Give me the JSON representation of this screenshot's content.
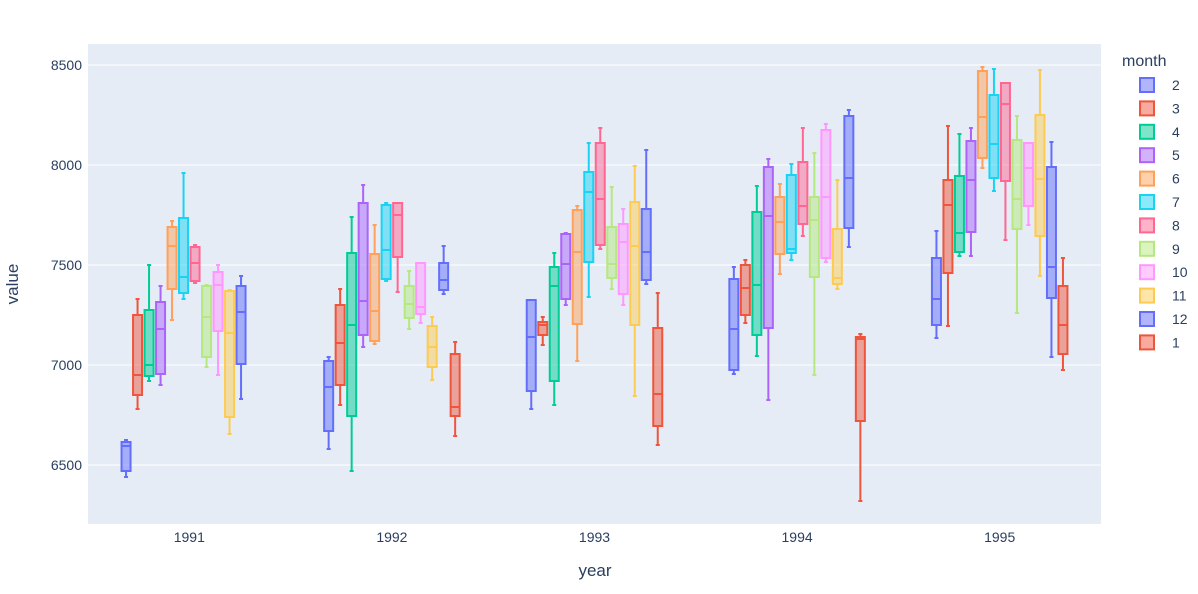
{
  "chart_data": {
    "type": "box",
    "xlabel": "year",
    "ylabel": "value",
    "legend_title": "month",
    "legend_position": "right",
    "categories": [
      "1991",
      "1992",
      "1993",
      "1994",
      "1995"
    ],
    "ylim": [
      6200,
      8700
    ],
    "yticks": [
      6500,
      7000,
      7500,
      8000,
      8500
    ],
    "grid": true,
    "series": [
      {
        "name": "2",
        "color": "#636efa",
        "boxes": [
          {
            "year": "1991",
            "min": 6440,
            "q1": 6470,
            "median": 6595,
            "q3": 6615,
            "max": 6625
          },
          {
            "year": "1992",
            "min": 6580,
            "q1": 6670,
            "median": 6890,
            "q3": 7020,
            "max": 7040
          },
          {
            "year": "1993",
            "min": 6780,
            "q1": 6870,
            "median": 7140,
            "q3": 7325,
            "max": 7325
          },
          {
            "year": "1994",
            "min": 6955,
            "q1": 6975,
            "median": 7180,
            "q3": 7430,
            "max": 7490
          },
          {
            "year": "1995",
            "min": 7135,
            "q1": 7200,
            "median": 7330,
            "q3": 7535,
            "max": 7670
          }
        ]
      },
      {
        "name": "3",
        "color": "#EF553B",
        "boxes": [
          {
            "year": "1991",
            "min": 6780,
            "q1": 6850,
            "median": 6950,
            "q3": 7250,
            "max": 7330
          },
          {
            "year": "1992",
            "min": 6800,
            "q1": 6900,
            "median": 7110,
            "q3": 7300,
            "max": 7380
          },
          {
            "year": "1993",
            "min": 7100,
            "q1": 7150,
            "median": 7200,
            "q3": 7215,
            "max": 7240
          },
          {
            "year": "1994",
            "min": 7210,
            "q1": 7250,
            "median": 7385,
            "q3": 7500,
            "max": 7525
          },
          {
            "year": "1995",
            "min": 7195,
            "q1": 7460,
            "median": 7800,
            "q3": 7925,
            "max": 8195
          }
        ]
      },
      {
        "name": "4",
        "color": "#00cc96",
        "boxes": [
          {
            "year": "1991",
            "min": 6920,
            "q1": 6945,
            "median": 7000,
            "q3": 7275,
            "max": 7500
          },
          {
            "year": "1992",
            "min": 6470,
            "q1": 6745,
            "median": 7200,
            "q3": 7560,
            "max": 7740
          },
          {
            "year": "1993",
            "min": 6800,
            "q1": 6920,
            "median": 7395,
            "q3": 7490,
            "max": 7560
          },
          {
            "year": "1994",
            "min": 7045,
            "q1": 7150,
            "median": 7400,
            "q3": 7765,
            "max": 7895
          },
          {
            "year": "1995",
            "min": 7545,
            "q1": 7565,
            "median": 7660,
            "q3": 7945,
            "max": 8155
          }
        ]
      },
      {
        "name": "5",
        "color": "#ab63fa",
        "boxes": [
          {
            "year": "1991",
            "min": 6900,
            "q1": 6955,
            "median": 7180,
            "q3": 7315,
            "max": 7395
          },
          {
            "year": "1992",
            "min": 7090,
            "q1": 7150,
            "median": 7320,
            "q3": 7810,
            "max": 7900
          },
          {
            "year": "1993",
            "min": 7300,
            "q1": 7330,
            "median": 7505,
            "q3": 7655,
            "max": 7660
          },
          {
            "year": "1994",
            "min": 6825,
            "q1": 7185,
            "median": 7745,
            "q3": 7990,
            "max": 8030
          },
          {
            "year": "1995",
            "min": 7545,
            "q1": 7665,
            "median": 7925,
            "q3": 8120,
            "max": 8185
          }
        ]
      },
      {
        "name": "6",
        "color": "#FFA15A",
        "boxes": [
          {
            "year": "1991",
            "min": 7225,
            "q1": 7380,
            "median": 7595,
            "q3": 7690,
            "max": 7720
          },
          {
            "year": "1992",
            "min": 7105,
            "q1": 7120,
            "median": 7270,
            "q3": 7555,
            "max": 7700
          },
          {
            "year": "1993",
            "min": 7020,
            "q1": 7205,
            "median": 7565,
            "q3": 7775,
            "max": 7795
          },
          {
            "year": "1994",
            "min": 7455,
            "q1": 7555,
            "median": 7715,
            "q3": 7840,
            "max": 7905
          },
          {
            "year": "1995",
            "min": 7985,
            "q1": 8035,
            "median": 8240,
            "q3": 8470,
            "max": 8490
          }
        ]
      },
      {
        "name": "7",
        "color": "#19d3f3",
        "boxes": [
          {
            "year": "1991",
            "min": 7330,
            "q1": 7360,
            "median": 7440,
            "q3": 7735,
            "max": 7960
          },
          {
            "year": "1992",
            "min": 7420,
            "q1": 7430,
            "median": 7575,
            "q3": 7800,
            "max": 7810
          },
          {
            "year": "1993",
            "min": 7340,
            "q1": 7515,
            "median": 7865,
            "q3": 7965,
            "max": 8110
          },
          {
            "year": "1994",
            "min": 7525,
            "q1": 7560,
            "median": 7580,
            "q3": 7950,
            "max": 8005
          },
          {
            "year": "1995",
            "min": 7870,
            "q1": 7935,
            "median": 8105,
            "q3": 8350,
            "max": 8480
          }
        ]
      },
      {
        "name": "8",
        "color": "#FF6692",
        "boxes": [
          {
            "year": "1991",
            "min": 7410,
            "q1": 7420,
            "median": 7510,
            "q3": 7590,
            "max": 7600
          },
          {
            "year": "1992",
            "min": 7365,
            "q1": 7540,
            "median": 7750,
            "q3": 7810,
            "max": 7810
          },
          {
            "year": "1993",
            "min": 7580,
            "q1": 7600,
            "median": 7830,
            "q3": 8110,
            "max": 8185
          },
          {
            "year": "1994",
            "min": 7645,
            "q1": 7705,
            "median": 7795,
            "q3": 8015,
            "max": 8185
          },
          {
            "year": "1995",
            "min": 7625,
            "q1": 7920,
            "median": 8305,
            "q3": 8410,
            "max": 8410
          }
        ]
      },
      {
        "name": "9",
        "color": "#B6E880",
        "boxes": [
          {
            "year": "1991",
            "min": 6990,
            "q1": 7040,
            "median": 7240,
            "q3": 7395,
            "max": 7400
          },
          {
            "year": "1992",
            "min": 7180,
            "q1": 7235,
            "median": 7305,
            "q3": 7395,
            "max": 7470
          },
          {
            "year": "1993",
            "min": 7380,
            "q1": 7435,
            "median": 7505,
            "q3": 7690,
            "max": 7890
          },
          {
            "year": "1994",
            "min": 6950,
            "q1": 7440,
            "median": 7725,
            "q3": 7840,
            "max": 8060
          },
          {
            "year": "1995",
            "min": 7260,
            "q1": 7680,
            "median": 7830,
            "q3": 8125,
            "max": 8245
          }
        ]
      },
      {
        "name": "10",
        "color": "#FF97FF",
        "boxes": [
          {
            "year": "1991",
            "min": 6950,
            "q1": 7170,
            "median": 7400,
            "q3": 7465,
            "max": 7500
          },
          {
            "year": "1992",
            "min": 7210,
            "q1": 7255,
            "median": 7290,
            "q3": 7510,
            "max": 7510
          },
          {
            "year": "1993",
            "min": 7300,
            "q1": 7355,
            "median": 7615,
            "q3": 7705,
            "max": 7780
          },
          {
            "year": "1994",
            "min": 7515,
            "q1": 7535,
            "median": 7840,
            "q3": 8175,
            "max": 8205
          },
          {
            "year": "1995",
            "min": 7700,
            "q1": 7795,
            "median": 7985,
            "q3": 8110,
            "max": 8110
          }
        ]
      },
      {
        "name": "11",
        "color": "#FECB52",
        "boxes": [
          {
            "year": "1991",
            "min": 6655,
            "q1": 6740,
            "median": 7160,
            "q3": 7370,
            "max": 7375
          },
          {
            "year": "1992",
            "min": 6925,
            "q1": 6990,
            "median": 7090,
            "q3": 7195,
            "max": 7240
          },
          {
            "year": "1993",
            "min": 6845,
            "q1": 7200,
            "median": 7595,
            "q3": 7815,
            "max": 7995
          },
          {
            "year": "1994",
            "min": 7380,
            "q1": 7405,
            "median": 7435,
            "q3": 7680,
            "max": 7925
          },
          {
            "year": "1995",
            "min": 7445,
            "q1": 7645,
            "median": 7930,
            "q3": 8250,
            "max": 8475
          }
        ]
      },
      {
        "name": "12",
        "color": "#636efa",
        "boxes": [
          {
            "year": "1991",
            "min": 6830,
            "q1": 7005,
            "median": 7265,
            "q3": 7395,
            "max": 7445
          },
          {
            "year": "1992",
            "min": 7355,
            "q1": 7375,
            "median": 7425,
            "q3": 7510,
            "max": 7595
          },
          {
            "year": "1993",
            "min": 7405,
            "q1": 7425,
            "median": 7565,
            "q3": 7780,
            "max": 8075
          },
          {
            "year": "1994",
            "min": 7590,
            "q1": 7685,
            "median": 7935,
            "q3": 8245,
            "max": 8275
          },
          {
            "year": "1995",
            "min": 7040,
            "q1": 7335,
            "median": 7490,
            "q3": 7990,
            "max": 8115
          }
        ]
      },
      {
        "name": "1",
        "color": "#EF553B",
        "boxes": [
          {
            "year": "1991",
            "min": null,
            "q1": null,
            "median": null,
            "q3": null,
            "max": null
          },
          {
            "year": "1992",
            "min": 6645,
            "q1": 6745,
            "median": 6790,
            "q3": 7055,
            "max": 7115
          },
          {
            "year": "1993",
            "min": 6600,
            "q1": 6695,
            "median": 6855,
            "q3": 7185,
            "max": 7360
          },
          {
            "year": "1994",
            "min": 6320,
            "q1": 6720,
            "median": 7130,
            "q3": 7140,
            "max": 7155
          },
          {
            "year": "1995",
            "min": 6975,
            "q1": 7055,
            "median": 7200,
            "q3": 7395,
            "max": 7535
          }
        ]
      }
    ]
  }
}
